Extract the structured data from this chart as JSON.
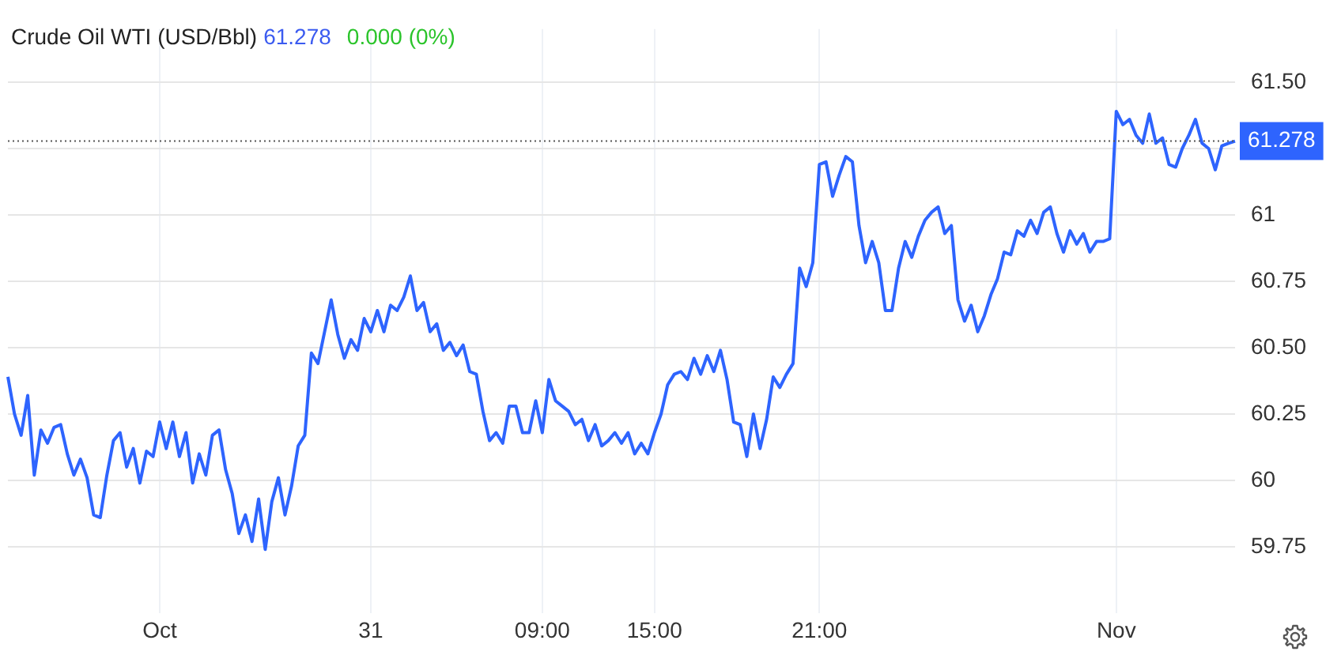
{
  "chart_data": {
    "type": "line",
    "title": "Crude Oil WTI (USD/Bbl)",
    "annotations": [
      "61.278",
      "0.000 (0%)"
    ],
    "categories": [
      null,
      null,
      null,
      null,
      null,
      null,
      null,
      null,
      null,
      null,
      null,
      null,
      null,
      null,
      null,
      null,
      null,
      null,
      null,
      null,
      null,
      null,
      null,
      "Oct",
      null,
      null,
      null,
      null,
      null,
      null,
      null,
      null,
      null,
      null,
      null,
      null,
      null,
      null,
      null,
      null,
      null,
      null,
      null,
      null,
      null,
      null,
      null,
      null,
      null,
      null,
      null,
      null,
      null,
      null,
      null,
      "31",
      null,
      null,
      null,
      null,
      null,
      null,
      null,
      null,
      null,
      null,
      null,
      null,
      null,
      null,
      null,
      null,
      null,
      null,
      null,
      null,
      null,
      null,
      null,
      null,
      null,
      "09:00",
      null,
      null,
      null,
      null,
      null,
      null,
      null,
      null,
      null,
      null,
      null,
      null,
      null,
      null,
      null,
      null,
      "15:00",
      null,
      null,
      null,
      null,
      null,
      null,
      null,
      null,
      null,
      null,
      null,
      null,
      null,
      null,
      null,
      null,
      null,
      null,
      null,
      null,
      null,
      null,
      null,
      null,
      "21:00",
      null,
      null,
      null,
      null,
      null,
      null,
      null,
      null,
      null,
      null,
      null,
      null,
      null,
      null,
      null,
      null,
      null,
      null,
      null,
      null,
      null,
      null,
      null,
      null,
      null,
      null,
      null,
      null,
      null,
      null,
      null,
      null,
      null,
      null,
      null,
      null,
      null,
      null,
      null,
      null,
      null,
      null,
      null,
      null,
      "Nov",
      null,
      null,
      null,
      null,
      null,
      null,
      null,
      null,
      null,
      null,
      null,
      null,
      null,
      null,
      null,
      null,
      null,
      null
    ],
    "series": [
      {
        "color": "#2e64fe",
        "values": [
          60.39,
          60.25,
          60.17,
          60.32,
          60.02,
          60.19,
          60.14,
          60.2,
          60.21,
          60.1,
          60.02,
          60.08,
          60.01,
          59.87,
          59.86,
          60.02,
          60.15,
          60.18,
          60.05,
          60.12,
          59.99,
          60.11,
          60.09,
          60.22,
          60.12,
          60.22,
          60.09,
          60.18,
          59.99,
          60.1,
          60.02,
          60.17,
          60.19,
          60.04,
          59.95,
          59.8,
          59.87,
          59.77,
          59.93,
          59.74,
          59.92,
          60.01,
          59.87,
          59.98,
          60.13,
          60.17,
          60.48,
          60.44,
          60.56,
          60.68,
          60.55,
          60.46,
          60.53,
          60.49,
          60.61,
          60.56,
          60.64,
          60.56,
          60.66,
          60.64,
          60.69,
          60.77,
          60.64,
          60.67,
          60.56,
          60.59,
          60.49,
          60.52,
          60.47,
          60.51,
          60.41,
          60.4,
          60.26,
          60.15,
          60.18,
          60.14,
          60.28,
          60.28,
          60.18,
          60.18,
          60.3,
          60.18,
          60.38,
          60.3,
          60.28,
          60.26,
          60.21,
          60.23,
          60.15,
          60.21,
          60.13,
          60.15,
          60.18,
          60.14,
          60.18,
          60.1,
          60.14,
          60.1,
          60.18,
          60.25,
          60.36,
          60.4,
          60.41,
          60.38,
          60.46,
          60.4,
          60.47,
          60.41,
          60.49,
          60.38,
          60.22,
          60.21,
          60.09,
          60.25,
          60.12,
          60.23,
          60.39,
          60.35,
          60.4,
          60.44,
          60.8,
          60.73,
          60.82,
          61.19,
          61.2,
          61.07,
          61.15,
          61.22,
          61.2,
          60.96,
          60.82,
          60.9,
          60.82,
          60.64,
          60.64,
          60.8,
          60.9,
          60.84,
          60.92,
          60.98,
          61.01,
          61.03,
          60.93,
          60.96,
          60.68,
          60.6,
          60.66,
          60.56,
          60.62,
          60.7,
          60.76,
          60.86,
          60.85,
          60.94,
          60.92,
          60.98,
          60.93,
          61.01,
          61.03,
          60.93,
          60.86,
          60.94,
          60.89,
          60.93,
          60.86,
          60.9,
          60.9,
          60.91,
          61.39,
          61.34,
          61.36,
          61.3,
          61.27,
          61.38,
          61.27,
          61.29,
          61.19,
          61.18,
          61.25,
          61.3,
          61.36,
          61.27,
          61.25,
          61.17,
          61.26,
          61.27,
          61.278
        ]
      }
    ],
    "ylim": [
      59.5,
      61.7
    ],
    "yticks": [
      59.75,
      60,
      60.25,
      {
        "value": 60.5,
        "label": "60.50"
      },
      60.75,
      61,
      {
        "value": 61.25,
        "label": null
      },
      {
        "value": 61.5,
        "label": "61.50"
      }
    ],
    "ref_lines": [
      {
        "axis": "y",
        "value": 61.278,
        "label": "61.278",
        "color": "#555555",
        "line_style": "dotted"
      }
    ],
    "grid": true,
    "legend": false,
    "marker": "none",
    "line_style": "solid"
  }
}
